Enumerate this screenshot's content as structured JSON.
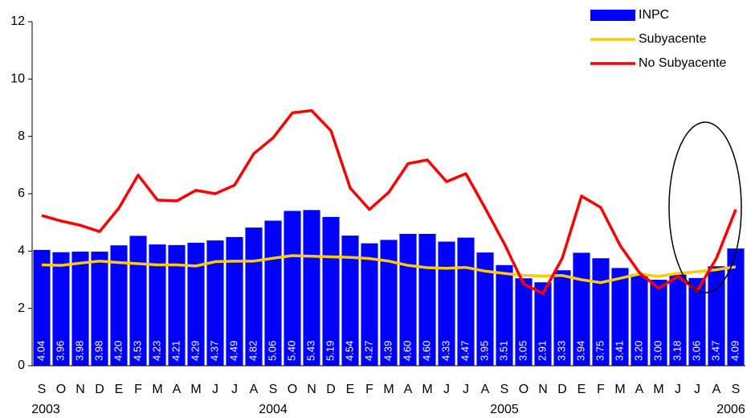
{
  "chart_data": {
    "type": "bar",
    "categories": [
      "S",
      "O",
      "N",
      "D",
      "E",
      "F",
      "M",
      "A",
      "M",
      "J",
      "J",
      "A",
      "S",
      "O",
      "N",
      "D",
      "E",
      "F",
      "M",
      "A",
      "M",
      "J",
      "J",
      "A",
      "S",
      "O",
      "N",
      "D",
      "E",
      "F",
      "M",
      "A",
      "M",
      "J",
      "J",
      "A",
      "S"
    ],
    "years": [
      "2003",
      null,
      null,
      null,
      null,
      null,
      null,
      null,
      null,
      null,
      null,
      null,
      "2004",
      null,
      null,
      null,
      null,
      null,
      null,
      null,
      null,
      null,
      null,
      null,
      "2005",
      null,
      null,
      null,
      null,
      null,
      null,
      null,
      null,
      null,
      null,
      null,
      "2006"
    ],
    "series": [
      {
        "name": "INPC",
        "type": "bar",
        "color": "#0000ff",
        "values": [
          4.04,
          3.96,
          3.98,
          3.98,
          4.2,
          4.53,
          4.23,
          4.21,
          4.29,
          4.37,
          4.49,
          4.82,
          5.06,
          5.4,
          5.43,
          5.19,
          4.54,
          4.27,
          4.39,
          4.6,
          4.6,
          4.33,
          4.47,
          3.95,
          3.51,
          3.05,
          2.91,
          3.33,
          3.94,
          3.75,
          3.41,
          3.2,
          3.0,
          3.18,
          3.06,
          3.47,
          4.09
        ],
        "value_labels": [
          "4.04",
          "3.96",
          "3.98",
          "3.98",
          "4.20",
          "4.53",
          "4.23",
          "4.21",
          "4.29",
          "4.37",
          "4.49",
          "4.82",
          "5.06",
          "5.40",
          "5.43",
          "5.19",
          "4.54",
          "4.27",
          "4.39",
          "4.60",
          "4.60",
          "4.33",
          "4.47",
          "3.95",
          "3.51",
          "3.05",
          "2.91",
          "3.33",
          "3.94",
          "3.75",
          "3.41",
          "3.20",
          "3.00",
          "3.18",
          "3.06",
          "3.47",
          "4.09"
        ]
      },
      {
        "name": "Subyacente",
        "type": "line",
        "color": "#ffcc00",
        "values": [
          3.52,
          3.5,
          3.58,
          3.65,
          3.6,
          3.56,
          3.52,
          3.52,
          3.48,
          3.63,
          3.65,
          3.65,
          3.75,
          3.84,
          3.82,
          3.8,
          3.78,
          3.74,
          3.65,
          3.5,
          3.42,
          3.4,
          3.43,
          3.3,
          3.22,
          3.15,
          3.13,
          3.15,
          3.0,
          2.9,
          3.05,
          3.2,
          3.12,
          3.22,
          3.28,
          3.35,
          3.45
        ]
      },
      {
        "name": "No Subyacente",
        "type": "line",
        "color": "#ff0000",
        "values": [
          5.24,
          5.05,
          4.9,
          4.68,
          5.5,
          6.65,
          5.78,
          5.75,
          6.12,
          6.0,
          6.3,
          7.4,
          7.95,
          8.82,
          8.9,
          8.2,
          6.2,
          5.45,
          6.05,
          7.05,
          7.18,
          6.42,
          6.7,
          5.5,
          4.25,
          2.85,
          2.52,
          3.75,
          5.92,
          5.52,
          4.2,
          3.25,
          2.7,
          3.12,
          2.62,
          3.75,
          5.45
        ]
      }
    ],
    "ylim": [
      0,
      12
    ],
    "yticks": [
      0,
      2,
      4,
      6,
      8,
      10,
      12
    ],
    "grid": false,
    "legend": "top-right"
  }
}
